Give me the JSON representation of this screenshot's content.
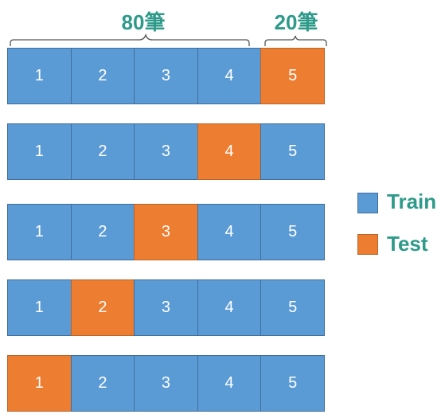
{
  "labels": {
    "train_count": "80筆",
    "test_count": "20筆"
  },
  "rows": [
    {
      "cells": [
        {
          "text": "1",
          "type": "train"
        },
        {
          "text": "2",
          "type": "train"
        },
        {
          "text": "3",
          "type": "train"
        },
        {
          "text": "4",
          "type": "train"
        },
        {
          "text": "5",
          "type": "test"
        }
      ]
    },
    {
      "cells": [
        {
          "text": "1",
          "type": "train"
        },
        {
          "text": "2",
          "type": "train"
        },
        {
          "text": "3",
          "type": "train"
        },
        {
          "text": "4",
          "type": "test"
        },
        {
          "text": "5",
          "type": "train"
        }
      ]
    },
    {
      "cells": [
        {
          "text": "1",
          "type": "train"
        },
        {
          "text": "2",
          "type": "train"
        },
        {
          "text": "3",
          "type": "test"
        },
        {
          "text": "4",
          "type": "train"
        },
        {
          "text": "5",
          "type": "train"
        }
      ]
    },
    {
      "cells": [
        {
          "text": "1",
          "type": "train"
        },
        {
          "text": "2",
          "type": "test"
        },
        {
          "text": "3",
          "type": "train"
        },
        {
          "text": "4",
          "type": "train"
        },
        {
          "text": "5",
          "type": "train"
        }
      ]
    },
    {
      "cells": [
        {
          "text": "1",
          "type": "test"
        },
        {
          "text": "2",
          "type": "train"
        },
        {
          "text": "3",
          "type": "train"
        },
        {
          "text": "4",
          "type": "train"
        },
        {
          "text": "5",
          "type": "train"
        }
      ]
    }
  ],
  "legend": {
    "train": {
      "label": "Train",
      "color": "#5b9bd5"
    },
    "test": {
      "label": "Test",
      "color": "#ed7d31"
    }
  }
}
